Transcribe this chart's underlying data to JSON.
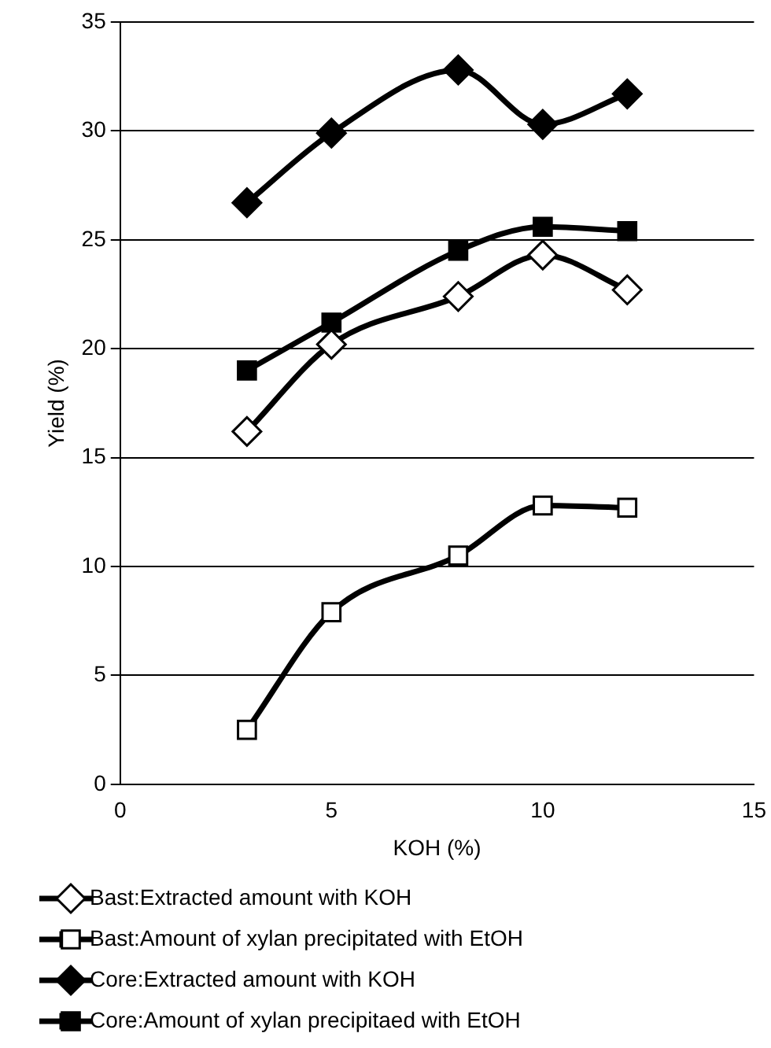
{
  "chart_data": {
    "type": "line",
    "xlabel": "KOH (%)",
    "ylabel": "Yield (%)",
    "x": [
      3,
      5,
      8,
      10,
      12
    ],
    "series": [
      {
        "name": "Bast:Extracted amount with KOH",
        "color": "#000000",
        "marker": "diamond",
        "colors": [
          "#ffffff",
          "#ffffff",
          "#ffffff",
          "#ffffff",
          "#ffffff"
        ],
        "values": [
          16.2,
          20.2,
          22.4,
          24.3,
          22.7
        ]
      },
      {
        "name": "Bast:Amount of xylan precipitated with EtOH",
        "color": "#000000",
        "marker": "square",
        "colors": [
          "#ffffff",
          "#ffffff",
          "#ffffff",
          "#ffffff",
          "#ffffff"
        ],
        "values": [
          2.5,
          7.9,
          10.5,
          12.8,
          12.7
        ]
      },
      {
        "name": "Core:Extracted amount with KOH",
        "color": "#000000",
        "marker": "diamond",
        "values": [
          26.7,
          29.9,
          32.8,
          30.3,
          31.7
        ]
      },
      {
        "name": "Core:Amount of xylan precipitaed with EtOH",
        "color": "#000000",
        "marker": "square",
        "values": [
          19.0,
          21.2,
          24.5,
          25.6,
          25.4
        ]
      }
    ],
    "xlim": [
      0,
      15
    ],
    "xticks": [
      0,
      5,
      10,
      15
    ],
    "ylim": [
      0,
      35
    ],
    "yticks": [
      0,
      5,
      10,
      15,
      20,
      25,
      30,
      35
    ],
    "grid": "y",
    "legend": "bottom"
  }
}
